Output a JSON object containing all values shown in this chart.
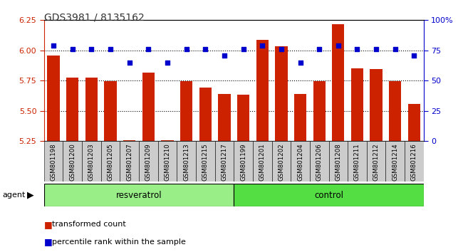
{
  "title": "GDS3981 / 8135162",
  "categories": [
    "GSM801198",
    "GSM801200",
    "GSM801203",
    "GSM801205",
    "GSM801207",
    "GSM801209",
    "GSM801210",
    "GSM801213",
    "GSM801215",
    "GSM801217",
    "GSM801199",
    "GSM801201",
    "GSM801202",
    "GSM801204",
    "GSM801206",
    "GSM801208",
    "GSM801211",
    "GSM801212",
    "GSM801214",
    "GSM801216"
  ],
  "bar_values": [
    5.955,
    5.775,
    5.775,
    5.745,
    5.258,
    5.815,
    5.258,
    5.748,
    5.695,
    5.638,
    5.635,
    6.09,
    6.035,
    5.64,
    5.748,
    6.215,
    5.85,
    5.845,
    5.745,
    5.555
  ],
  "dot_values": [
    79,
    76,
    76,
    76,
    65,
    76,
    65,
    76,
    76,
    71,
    76,
    79,
    76,
    65,
    76,
    79,
    76,
    76,
    76,
    71
  ],
  "bar_color": "#cc2200",
  "dot_color": "#0000cc",
  "ymin": 5.25,
  "ymax": 6.25,
  "y2min": 0,
  "y2max": 100,
  "yticks": [
    5.25,
    5.5,
    5.75,
    6.0,
    6.25
  ],
  "y2ticks": [
    0,
    25,
    50,
    75,
    100
  ],
  "y2ticklabels": [
    "0",
    "25",
    "50",
    "75",
    "100%"
  ],
  "group1_label": "resveratrol",
  "group2_label": "control",
  "group1_count": 10,
  "group2_count": 10,
  "agent_label": "agent",
  "legend1": "transformed count",
  "legend2": "percentile rank within the sample",
  "bar_baseline": 5.25,
  "bg_color": "#cccccc",
  "group1_color": "#99ee88",
  "group2_color": "#55dd44",
  "title_color": "#333333"
}
